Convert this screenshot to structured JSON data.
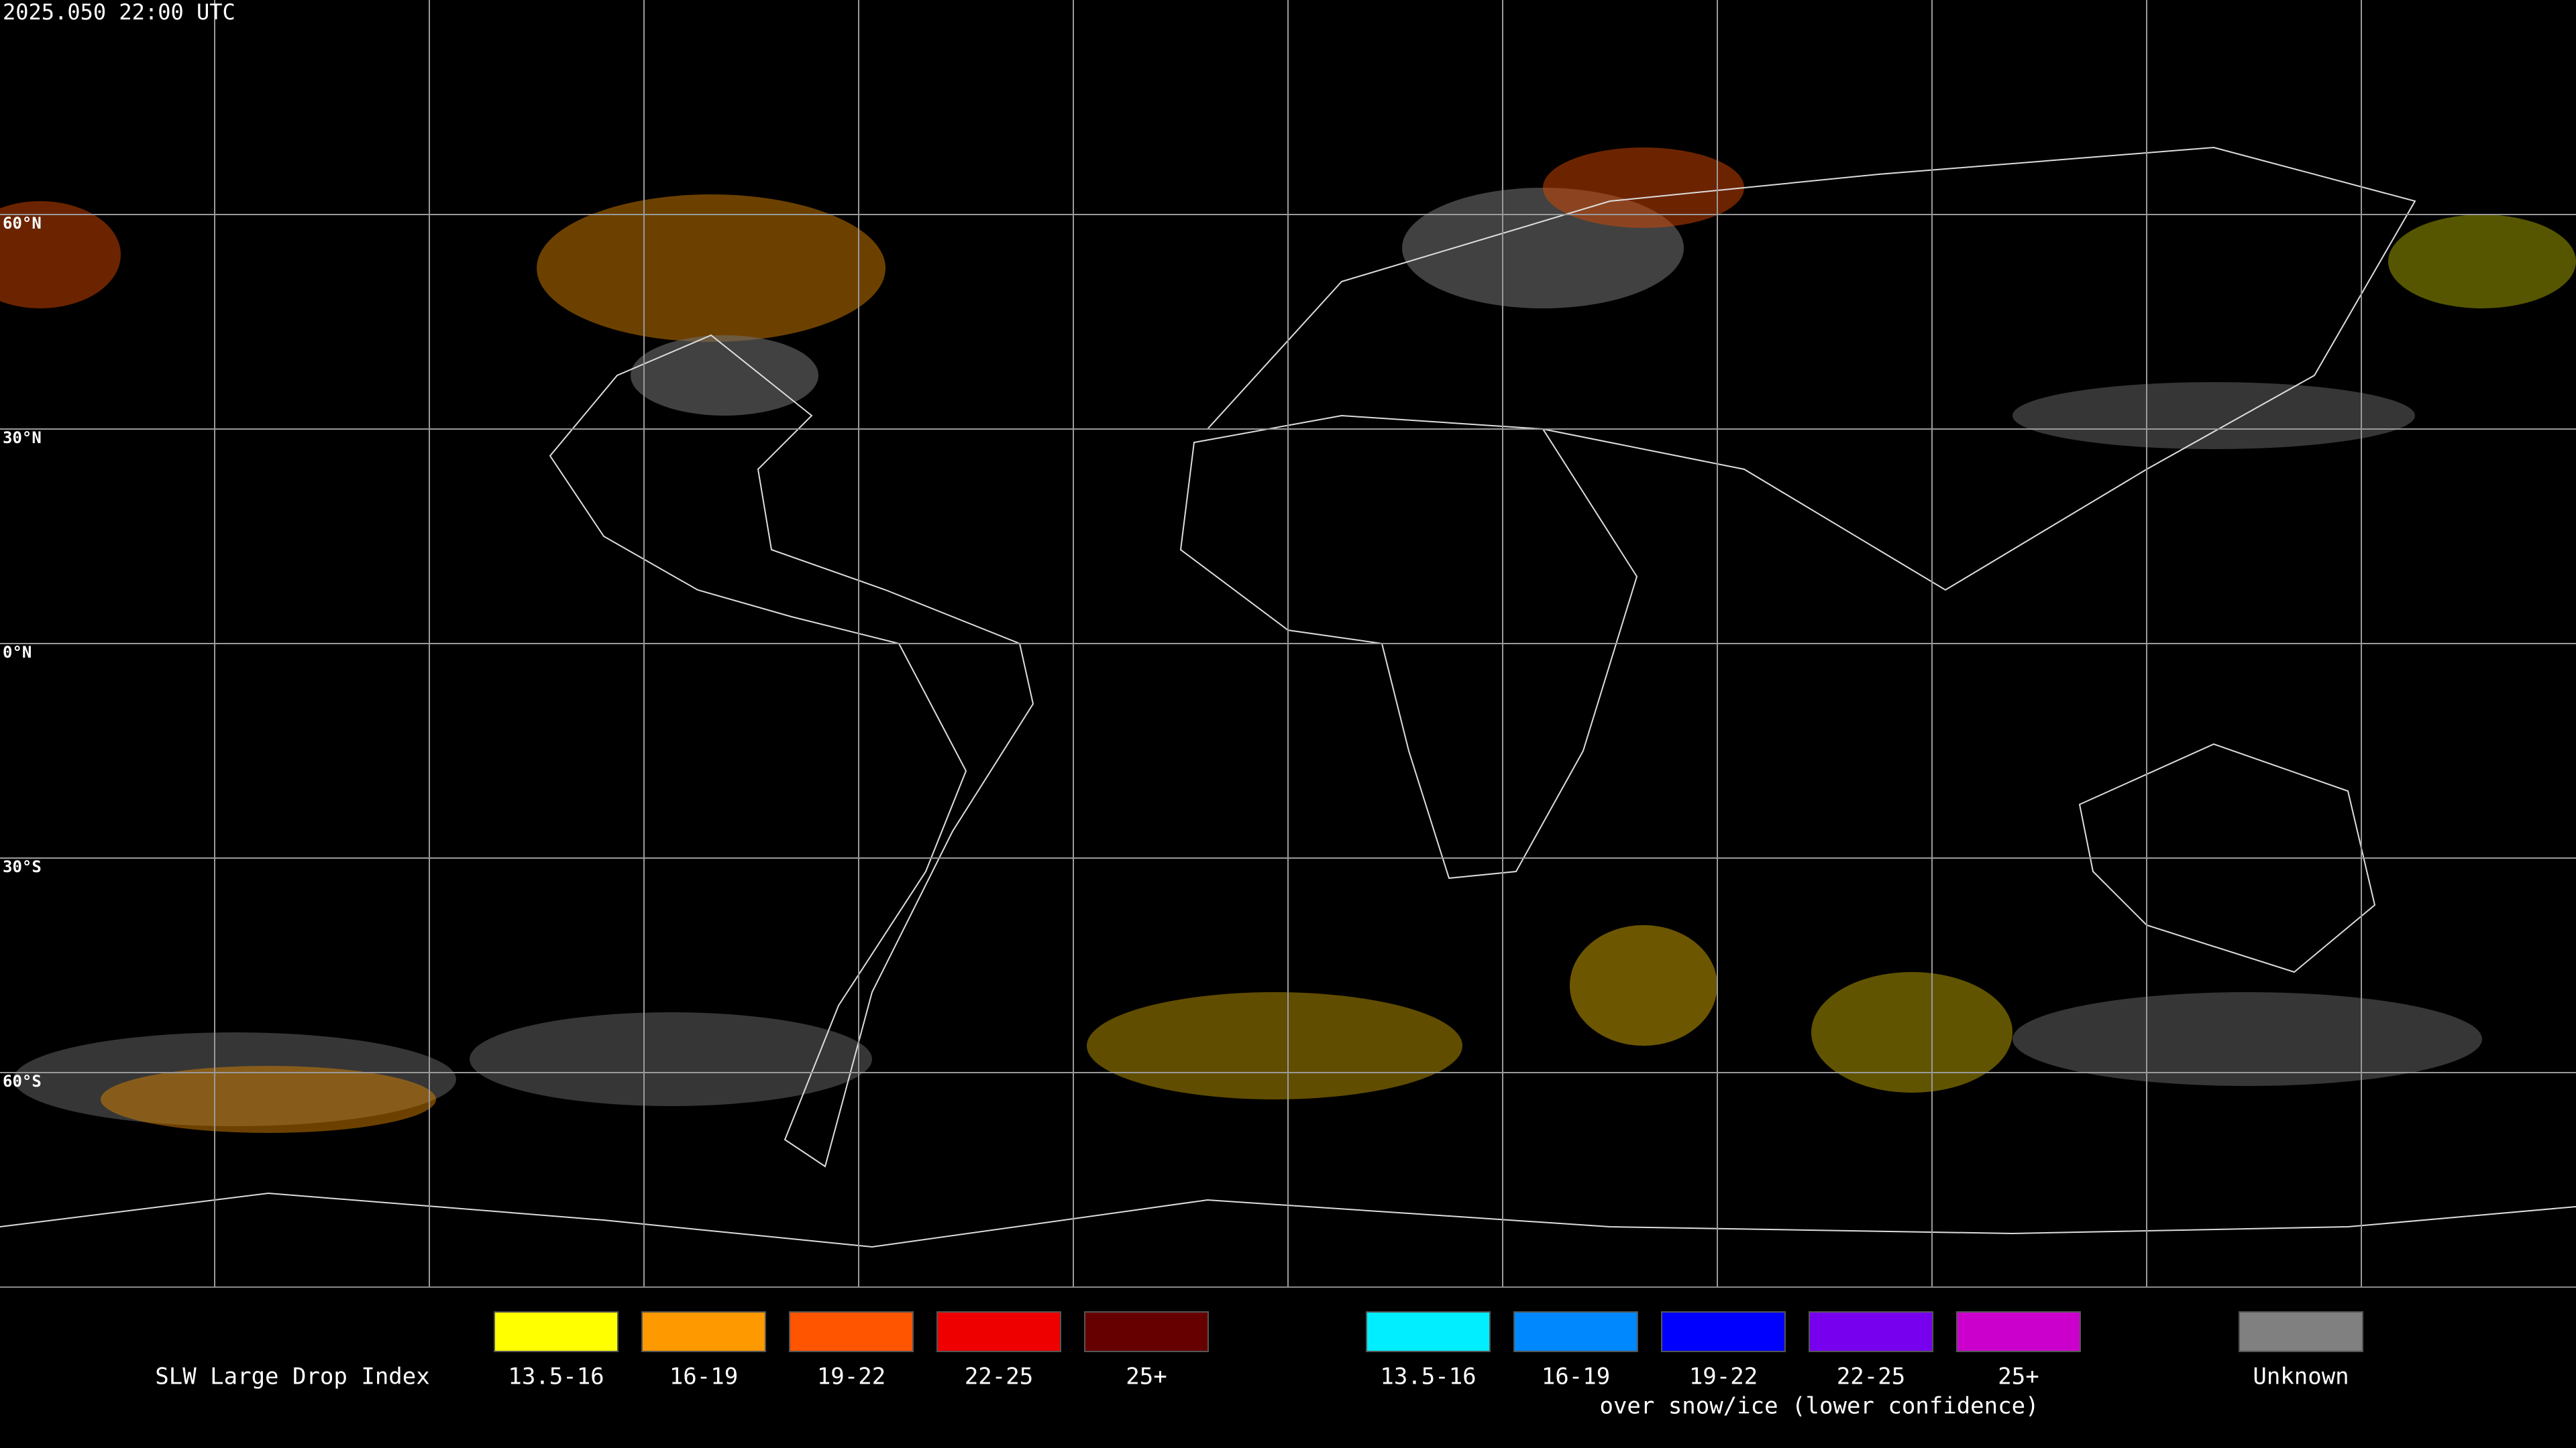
{
  "timestamp": "2025.050 22:00 UTC",
  "latitude_labels": [
    "60°N",
    "30°N",
    "0°N",
    "30°S",
    "60°S"
  ],
  "legend": {
    "title": "SLW Large Drop Index",
    "items": [
      {
        "label": "13.5-16",
        "color": "#ffff00"
      },
      {
        "label": "16-19",
        "color": "#ff9900"
      },
      {
        "label": "19-22",
        "color": "#ff5500"
      },
      {
        "label": "22-25",
        "color": "#ee0000"
      },
      {
        "label": "25+",
        "color": "#660000"
      }
    ],
    "snow_ice_items": [
      {
        "label": "13.5-16",
        "color": "#00eeff"
      },
      {
        "label": "16-19",
        "color": "#0088ff"
      },
      {
        "label": "19-22",
        "color": "#0000ff"
      },
      {
        "label": "22-25",
        "color": "#7700ee"
      },
      {
        "label": "25+",
        "color": "#cc00cc"
      }
    ],
    "snow_ice_caption": "over snow/ice (lower confidence)",
    "unknown": {
      "label": "Unknown",
      "color": "#808080"
    }
  }
}
